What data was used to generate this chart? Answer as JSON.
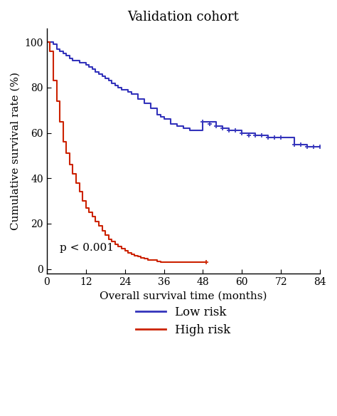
{
  "title": "Validation cohort",
  "xlabel": "Overall survival time (months)",
  "ylabel": "Cumulative survival rate (%)",
  "xlim": [
    0,
    84
  ],
  "ylim": [
    -2,
    106
  ],
  "xticks": [
    0,
    12,
    24,
    36,
    48,
    60,
    72,
    84
  ],
  "yticks": [
    0,
    20,
    40,
    60,
    80,
    100
  ],
  "pvalue_text": "p < 0.001",
  "pvalue_x": 4,
  "pvalue_y": 7,
  "low_risk_color": "#3333bb",
  "high_risk_color": "#cc2200",
  "legend_labels": [
    "Low risk",
    "High risk"
  ],
  "low_risk_curve": {
    "times": [
      0,
      2,
      3,
      4,
      5,
      6,
      7,
      8,
      9,
      10,
      11,
      12,
      13,
      14,
      15,
      16,
      17,
      18,
      19,
      20,
      21,
      22,
      23,
      24,
      25,
      26,
      28,
      30,
      32,
      34,
      35,
      36,
      38,
      40,
      42,
      44,
      46,
      48,
      52,
      54,
      56,
      60,
      64,
      66,
      68,
      70,
      72,
      76,
      80,
      84
    ],
    "survival": [
      100,
      99,
      97,
      96,
      95,
      94,
      93,
      92,
      92,
      91,
      91,
      90,
      89,
      88,
      87,
      86,
      85,
      84,
      83,
      82,
      81,
      80,
      79,
      79,
      78,
      77,
      75,
      73,
      71,
      68,
      67,
      66,
      64,
      63,
      62,
      61,
      61,
      65,
      63,
      62,
      61,
      60,
      59,
      59,
      58,
      58,
      58,
      55,
      54,
      54
    ]
  },
  "high_risk_curve": {
    "times": [
      0,
      1,
      2,
      3,
      4,
      5,
      6,
      7,
      8,
      9,
      10,
      11,
      12,
      13,
      14,
      15,
      16,
      17,
      18,
      19,
      20,
      21,
      22,
      23,
      24,
      25,
      26,
      27,
      28,
      29,
      30,
      31,
      32,
      33,
      34,
      35,
      36,
      38,
      40,
      42,
      44,
      46,
      48,
      49
    ],
    "survival": [
      100,
      96,
      83,
      74,
      65,
      56,
      51,
      46,
      42,
      38,
      34,
      30,
      27,
      25,
      23,
      21,
      19,
      17,
      15,
      13,
      12,
      11,
      10,
      9,
      8,
      7,
      6.5,
      6,
      5.5,
      5,
      4.5,
      4,
      4,
      4,
      3.5,
      3,
      3,
      3,
      3,
      3,
      3,
      3,
      3,
      3
    ]
  },
  "low_risk_censors": {
    "times": [
      48,
      50,
      52,
      54,
      56,
      58,
      60,
      62,
      64,
      66,
      68,
      70,
      72,
      76,
      78,
      80,
      82,
      84
    ],
    "survival": [
      65,
      64,
      63,
      62,
      61,
      61,
      60,
      59,
      59,
      59,
      58,
      58,
      58,
      55,
      55,
      54,
      54,
      54
    ]
  },
  "high_risk_censors": {
    "times": [
      49
    ],
    "survival": [
      3
    ]
  }
}
